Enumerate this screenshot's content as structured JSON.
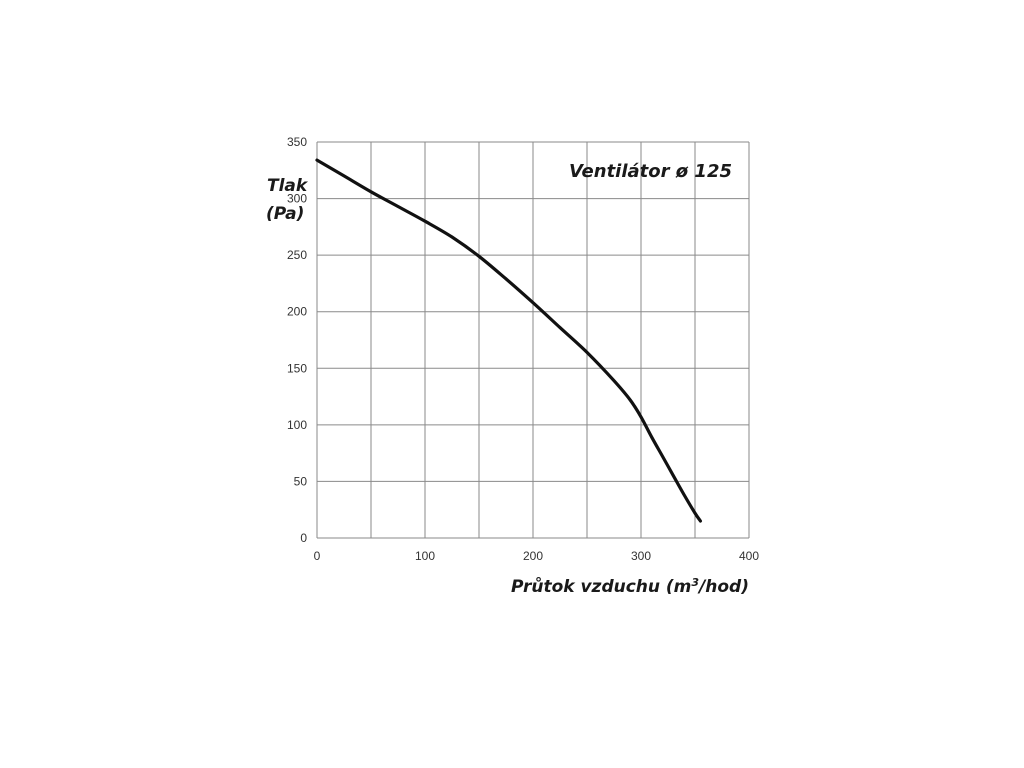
{
  "chart_data": {
    "type": "line",
    "title": "Ventilátor ø 125",
    "xlabel_prefix": "Průtok vzduchu (m",
    "xlabel_sup": "3",
    "xlabel_suffix": "/hod)",
    "ylabel_line1": "Tlak",
    "ylabel_line2": "(Pa)",
    "xlim": [
      0,
      400
    ],
    "ylim": [
      0,
      350
    ],
    "x_ticks": [
      0,
      100,
      200,
      300,
      400
    ],
    "y_ticks": [
      0,
      50,
      100,
      150,
      200,
      250,
      300,
      350
    ],
    "grid": true,
    "series": [
      {
        "x": [
          0,
          25,
          50,
          75,
          100,
          125,
          150,
          175,
          200,
          225,
          250,
          275,
          290,
          300,
          310,
          320,
          330,
          340,
          350,
          355
        ],
        "y": [
          334,
          320,
          306,
          293,
          280,
          266,
          249,
          229,
          208,
          186,
          164,
          139,
          122,
          107,
          89,
          72,
          55,
          38,
          22,
          15
        ]
      }
    ]
  },
  "colors": {
    "line": "#111111",
    "grid": "#8a8a8a"
  }
}
